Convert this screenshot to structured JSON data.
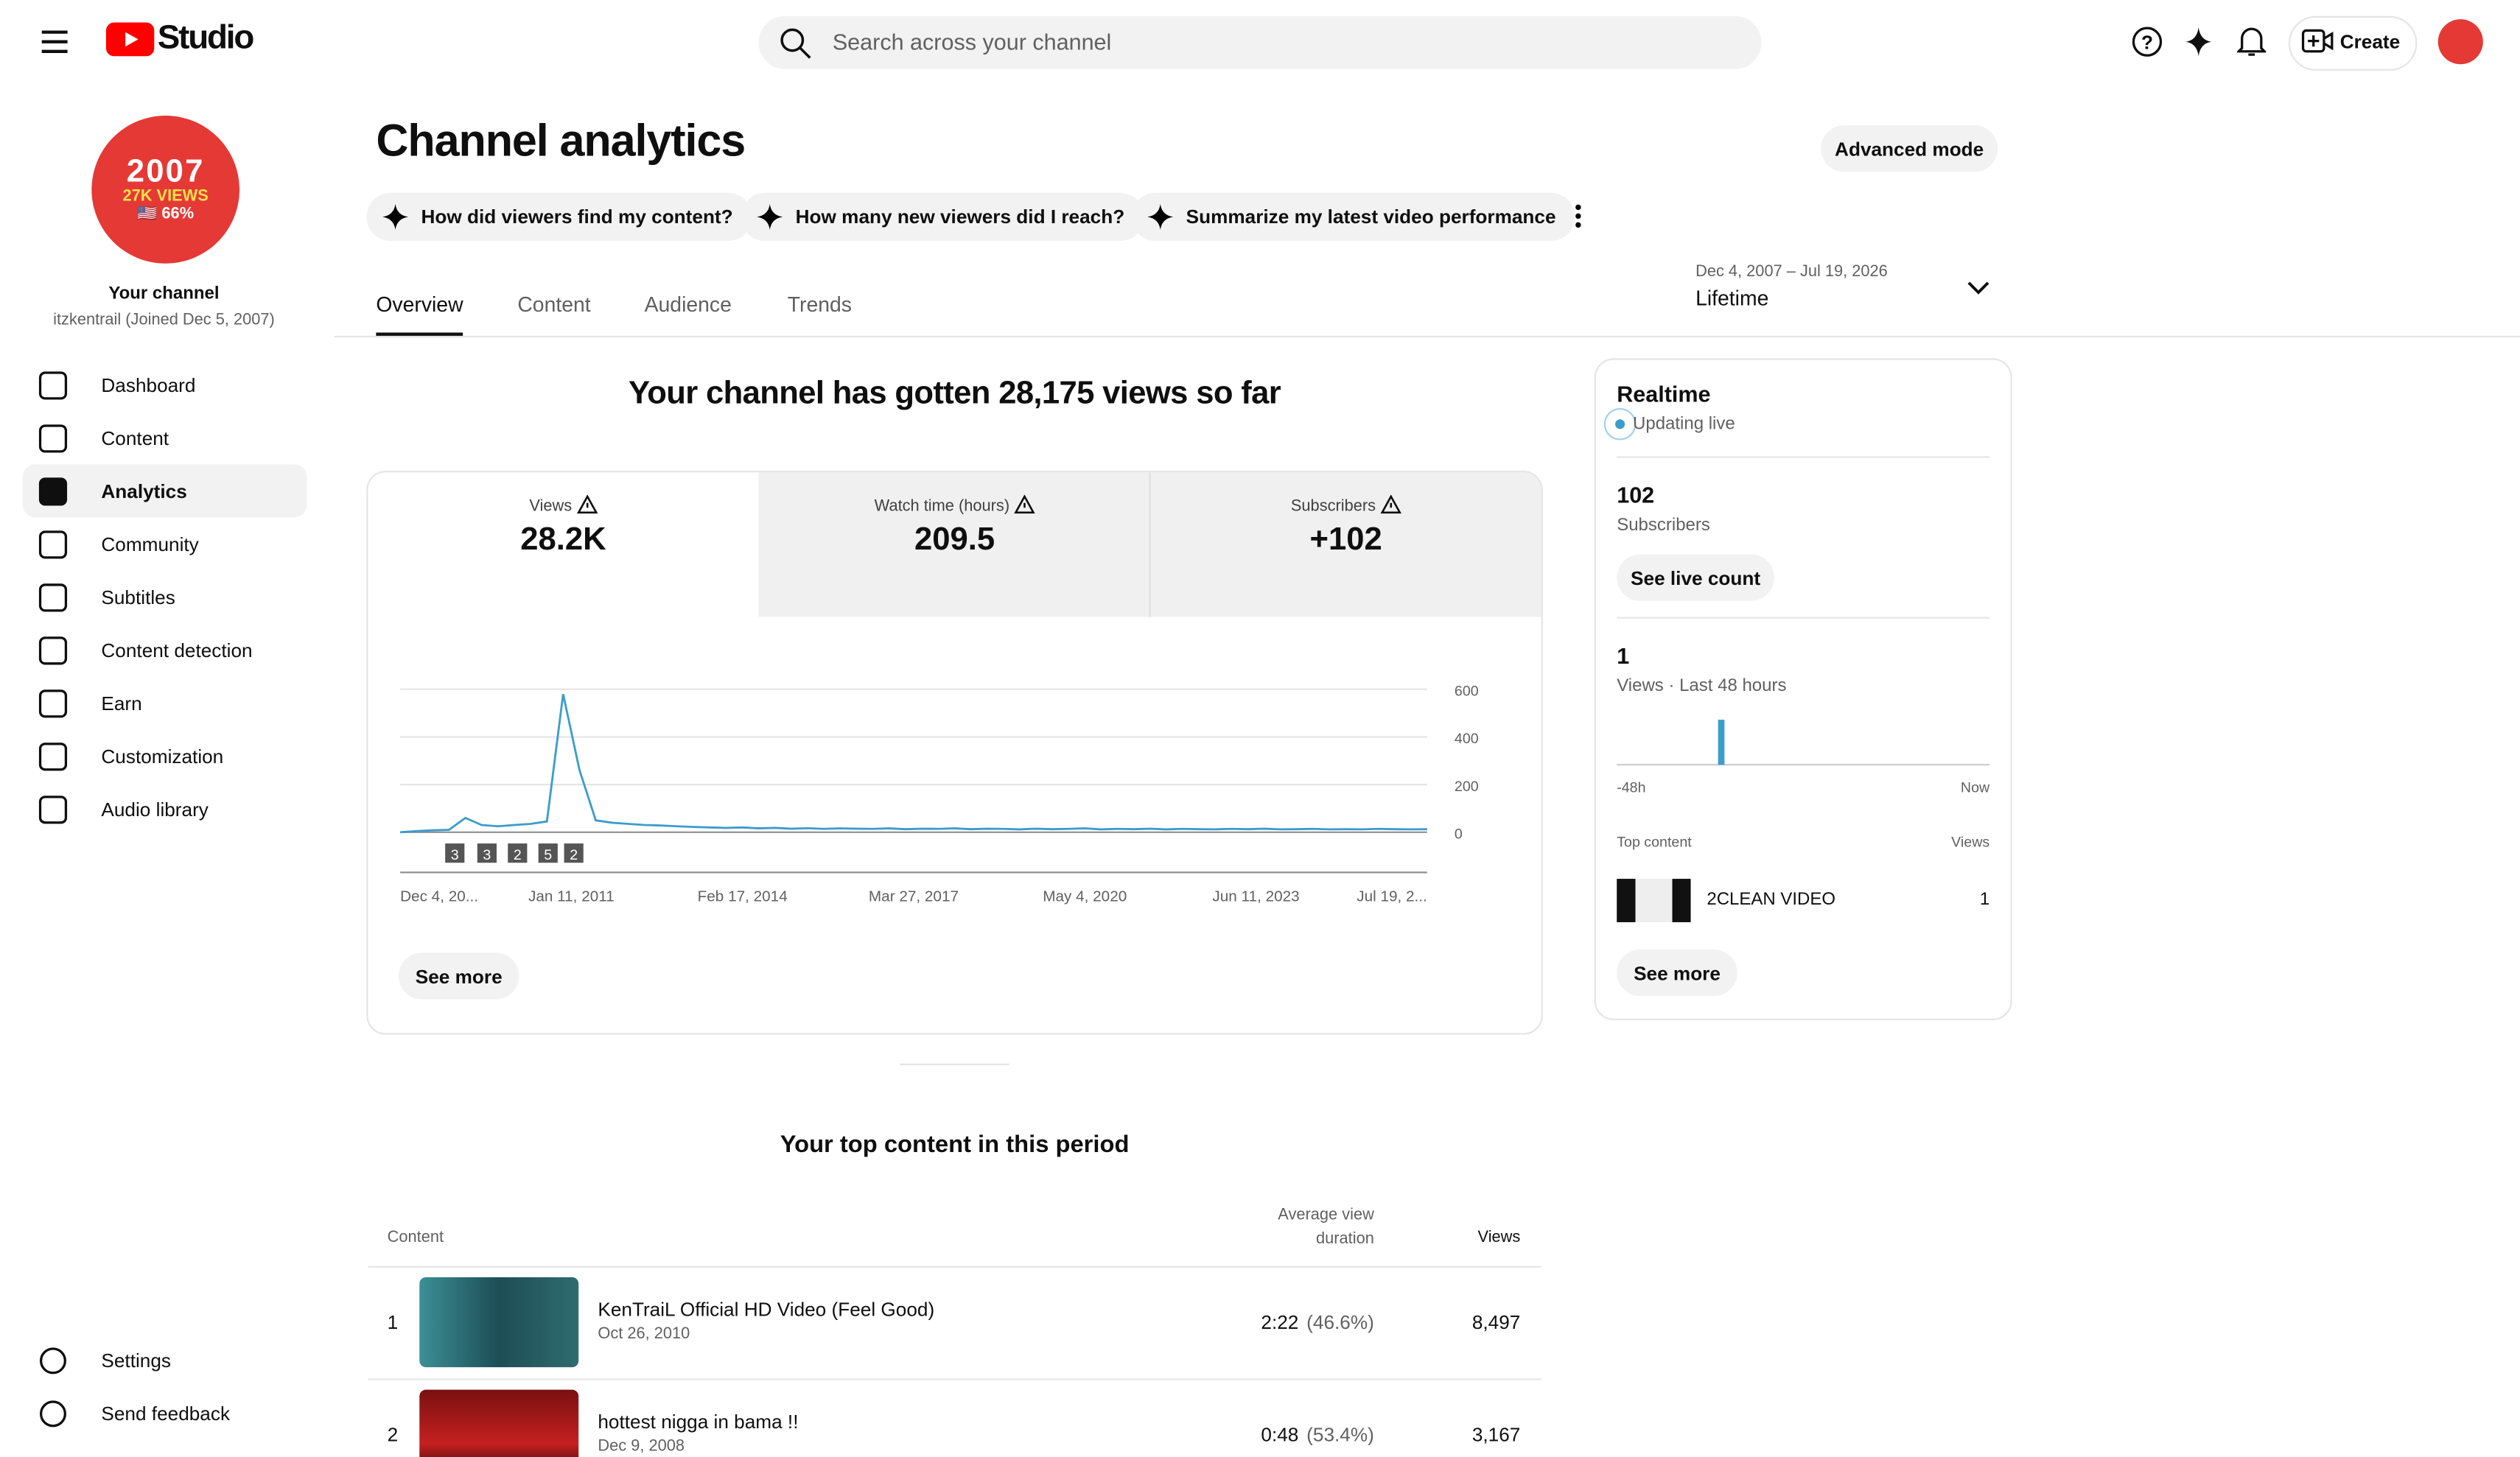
{
  "header": {
    "logo": "Studio",
    "search_placeholder": "Search across your channel",
    "create": "Create"
  },
  "sidebar": {
    "avatar_lines": [
      "2007",
      "27K VIEWS",
      "🇺🇸 66%"
    ],
    "channel_label": "Your channel",
    "channel_sub": "itzkentrail (Joined Dec 5, 2007)",
    "nav": [
      "Dashboard",
      "Content",
      "Analytics",
      "Community",
      "Subtitles",
      "Content detection",
      "Earn",
      "Customization",
      "Audio library"
    ],
    "bottom": [
      "Settings",
      "Send feedback"
    ]
  },
  "main": {
    "title": "Channel analytics",
    "advanced": "Advanced mode",
    "chips": [
      "How did viewers find my content?",
      "How many new viewers did I reach?",
      "Summarize my latest video performance"
    ],
    "tabs": [
      "Overview",
      "Content",
      "Audience",
      "Trends"
    ],
    "date_range": {
      "range": "Dec 4, 2007 – Jul 19, 2026",
      "label": "Lifetime"
    },
    "headline": "Your channel has gotten 28,175 views so far",
    "metrics": [
      {
        "label": "Views",
        "value": "28.2K"
      },
      {
        "label": "Watch time (hours)",
        "value": "209.5"
      },
      {
        "label": "Subscribers",
        "value": "+102"
      }
    ],
    "chart": {
      "type": "line",
      "color": "#3d9ccc",
      "ylim": [
        0,
        600
      ],
      "yticks": [
        0,
        200,
        400,
        600
      ],
      "xticks": [
        "Dec 4, 20...",
        "Jan 11, 2011",
        "Feb 17, 2014",
        "Mar 27, 2017",
        "May 4, 2020",
        "Jun 11, 2023",
        "Jul 19, 2..."
      ],
      "values": [
        0,
        5,
        8,
        10,
        60,
        30,
        25,
        30,
        35,
        45,
        580,
        260,
        50,
        40,
        35,
        30,
        28,
        25,
        22,
        20,
        18,
        20,
        16,
        18,
        15,
        17,
        14,
        16,
        15,
        14,
        16,
        13,
        15,
        14,
        16,
        13,
        15,
        14,
        12,
        15,
        13,
        14,
        16,
        12,
        14,
        13,
        15,
        12,
        14,
        13,
        12,
        14,
        13,
        15,
        12,
        13,
        14,
        12,
        13,
        12,
        14,
        13,
        12,
        13
      ],
      "annotations": [
        3,
        3,
        2,
        5,
        2
      ]
    },
    "see_more": "See more",
    "top_content": {
      "title": "Your top content in this period",
      "headers": {
        "content": "Content",
        "avg": "Average view duration",
        "views": "Views"
      },
      "rows": [
        {
          "rank": 1,
          "title": "KenTraiL Official HD Video (Feel Good)",
          "date": "Oct 26, 2010",
          "duration": "2:22",
          "pct": "(46.6%)",
          "views": "8,497"
        },
        {
          "rank": 2,
          "title": "hottest nigga in bama !!",
          "date": "Dec 9, 2008",
          "duration": "0:48",
          "pct": "(53.4%)",
          "views": "3,167"
        }
      ]
    }
  },
  "realtime": {
    "title": "Realtime",
    "status": "Updating live",
    "subscribers": "102",
    "subscribers_label": "Subscribers",
    "see_live": "See live count",
    "views": 1,
    "views_label": "Views · Last 48 hours",
    "axis": [
      "-48h",
      "Now"
    ],
    "top_label": "Top content",
    "views_col": "Views",
    "top": [
      {
        "title": "2CLEAN VIDEO",
        "views": "1"
      }
    ],
    "see_more": "See more"
  }
}
